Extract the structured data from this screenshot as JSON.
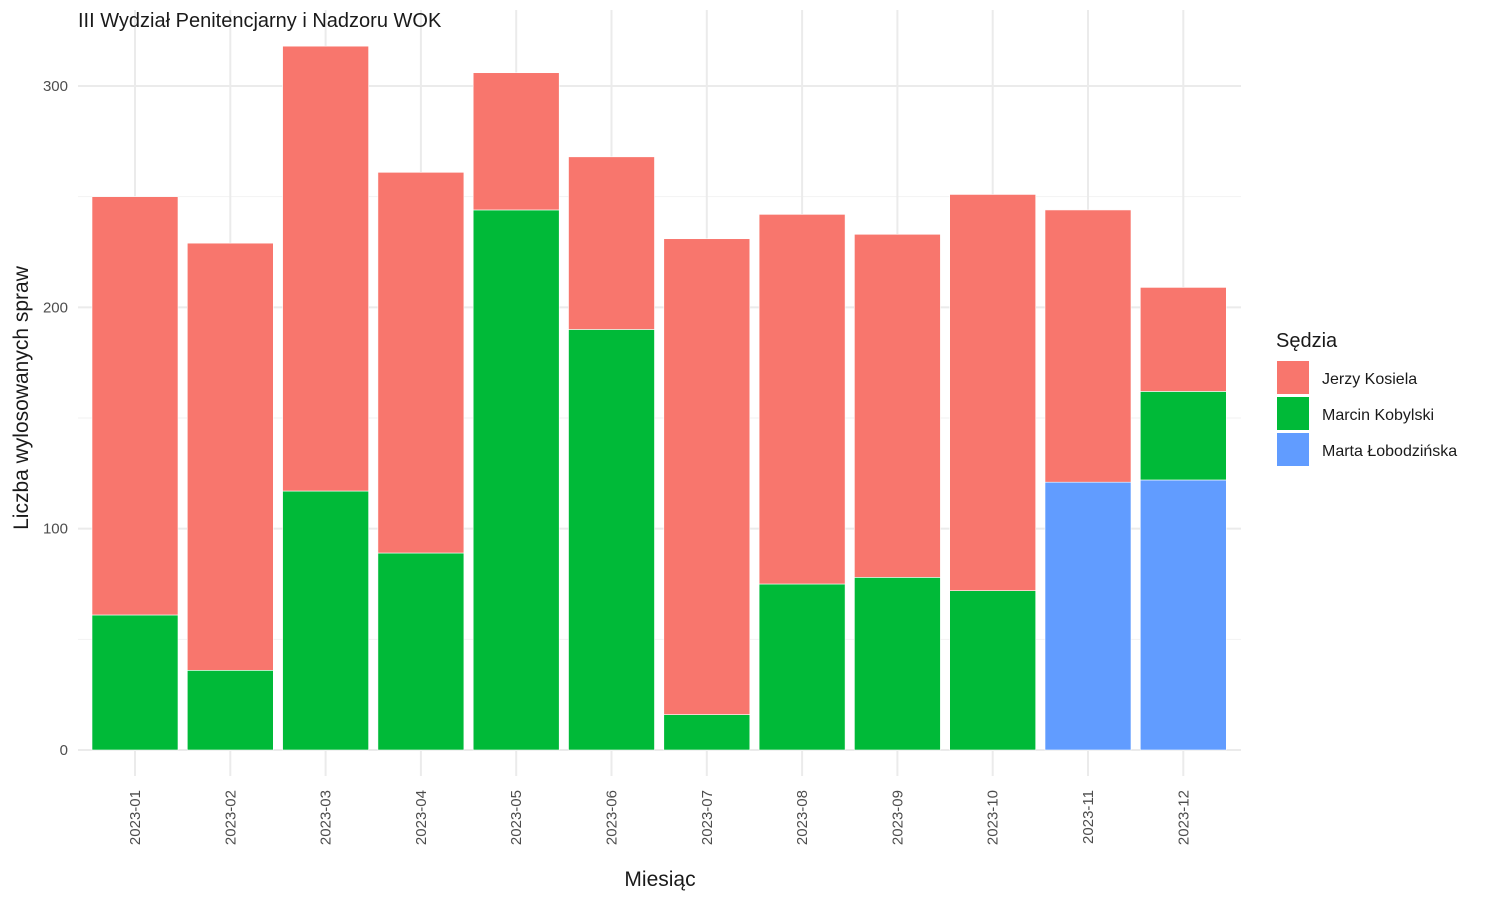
{
  "chart_data": {
    "type": "bar",
    "stacked": true,
    "title": "III Wydział Penitencjarny i Nadzoru WOK",
    "xlabel": "Miesiąc",
    "ylabel": "Liczba wylosowanych spraw",
    "ylim": [
      0,
      330
    ],
    "yticks": [
      0,
      100,
      200,
      300
    ],
    "grid": true,
    "legend": {
      "title": "Sędzia",
      "position": "right"
    },
    "categories": [
      "2023-01",
      "2023-02",
      "2023-03",
      "2023-04",
      "2023-05",
      "2023-06",
      "2023-07",
      "2023-08",
      "2023-09",
      "2023-10",
      "2023-11",
      "2023-12"
    ],
    "series": [
      {
        "name": "Marta Łobodzińska",
        "color": "#619CFF",
        "values": [
          0,
          0,
          0,
          0,
          0,
          0,
          0,
          0,
          0,
          0,
          121,
          122
        ]
      },
      {
        "name": "Marcin Kobylski",
        "color": "#00BA38",
        "values": [
          61,
          36,
          117,
          89,
          244,
          190,
          16,
          75,
          78,
          72,
          0,
          40
        ]
      },
      {
        "name": "Jerzy Kosiela",
        "color": "#F8766D",
        "values": [
          189,
          193,
          201,
          172,
          62,
          78,
          215,
          167,
          155,
          179,
          123,
          47
        ]
      }
    ],
    "legend_order": [
      "Jerzy Kosiela",
      "Marcin Kobylski",
      "Marta Łobodzińska"
    ]
  }
}
